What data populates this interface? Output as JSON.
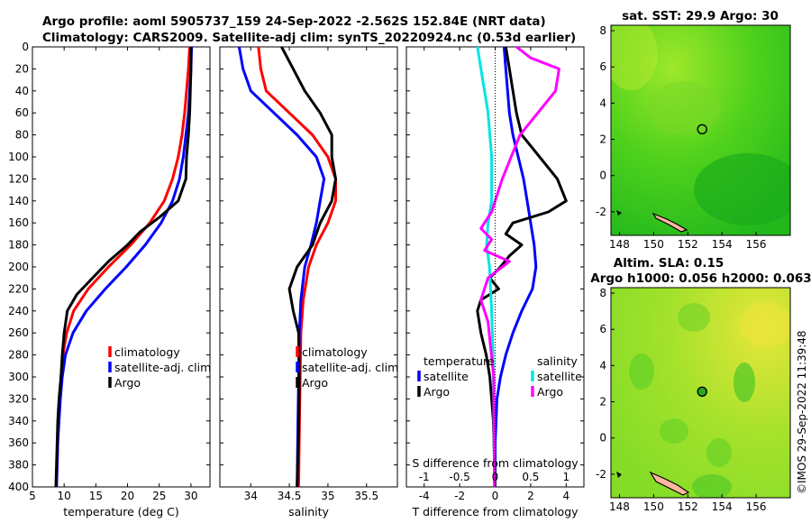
{
  "title_line1": "Argo profile: aoml 5905737_159 24-Sep-2022 -2.562S 152.84E (NRT data)",
  "title_line2": "Climatology: CARS2009. Satellite-adj clim: synTS_20220924.nc (0.53d earlier)",
  "credit": "©IMOS 29-Sep-2022 11:39:48",
  "colors": {
    "clim": "#ff0000",
    "sat": "#0000ff",
    "argo": "#000000",
    "sat_s": "#00e5e5",
    "argo_s": "#ff00ff"
  },
  "chart_data": [
    {
      "type": "line",
      "name": "temperature",
      "xlabel": "temperature (deg C)",
      "ylabel": "",
      "xlim": [
        5,
        33
      ],
      "ylim": [
        0,
        400
      ],
      "y_reversed": true,
      "xticks": [
        5,
        10,
        15,
        20,
        25,
        30
      ],
      "yticks": [
        0,
        20,
        40,
        60,
        80,
        100,
        120,
        140,
        160,
        180,
        200,
        220,
        240,
        260,
        280,
        300,
        320,
        340,
        360,
        380,
        400
      ],
      "legend": [
        "climatology",
        "satellite-adj. clim",
        "Argo"
      ],
      "series": [
        {
          "name": "climatology",
          "color": "#ff0000",
          "points": [
            [
              29.8,
              0
            ],
            [
              29.6,
              20
            ],
            [
              29.3,
              40
            ],
            [
              29.0,
              60
            ],
            [
              28.6,
              80
            ],
            [
              28.0,
              100
            ],
            [
              27.1,
              120
            ],
            [
              25.8,
              140
            ],
            [
              23.5,
              160
            ],
            [
              20.5,
              180
            ],
            [
              17.0,
              200
            ],
            [
              13.8,
              220
            ],
            [
              11.5,
              240
            ],
            [
              10.4,
              260
            ],
            [
              9.8,
              280
            ],
            [
              9.5,
              300
            ],
            [
              9.3,
              320
            ],
            [
              9.1,
              340
            ],
            [
              9.0,
              360
            ],
            [
              8.9,
              380
            ],
            [
              8.8,
              400
            ]
          ]
        },
        {
          "name": "satellite-adj. clim",
          "color": "#0000ff",
          "points": [
            [
              30.1,
              0
            ],
            [
              30.0,
              20
            ],
            [
              29.8,
              40
            ],
            [
              29.6,
              60
            ],
            [
              29.2,
              80
            ],
            [
              28.8,
              100
            ],
            [
              28.2,
              120
            ],
            [
              27.1,
              140
            ],
            [
              25.3,
              160
            ],
            [
              22.8,
              180
            ],
            [
              19.8,
              200
            ],
            [
              16.5,
              220
            ],
            [
              13.5,
              240
            ],
            [
              11.4,
              260
            ],
            [
              10.2,
              280
            ],
            [
              9.7,
              300
            ],
            [
              9.4,
              320
            ],
            [
              9.2,
              340
            ],
            [
              9.0,
              360
            ],
            [
              8.9,
              380
            ],
            [
              8.8,
              400
            ]
          ]
        },
        {
          "name": "Argo",
          "color": "#000000",
          "points": [
            [
              30.0,
              0
            ],
            [
              30.0,
              20
            ],
            [
              29.9,
              40
            ],
            [
              29.8,
              60
            ],
            [
              29.6,
              80
            ],
            [
              29.3,
              100
            ],
            [
              29.2,
              120
            ],
            [
              28.0,
              140
            ],
            [
              25.0,
              155
            ],
            [
              22.0,
              168
            ],
            [
              20.0,
              180
            ],
            [
              17.0,
              195
            ],
            [
              14.5,
              210
            ],
            [
              12.0,
              225
            ],
            [
              10.5,
              240
            ],
            [
              10.0,
              260
            ],
            [
              9.7,
              280
            ],
            [
              9.5,
              300
            ],
            [
              9.2,
              320
            ],
            [
              9.0,
              340
            ],
            [
              8.9,
              360
            ],
            [
              8.8,
              380
            ],
            [
              8.7,
              400
            ]
          ]
        }
      ]
    },
    {
      "type": "line",
      "name": "salinity",
      "xlabel": "salinity",
      "ylabel": "",
      "xlim": [
        33.6,
        35.9
      ],
      "ylim": [
        0,
        400
      ],
      "y_reversed": true,
      "xticks": [
        34,
        34.5,
        35,
        35.5
      ],
      "legend": [
        "climatology",
        "satellite-adj. clim",
        "Argo"
      ],
      "series": [
        {
          "name": "climatology",
          "color": "#ff0000",
          "points": [
            [
              34.1,
              0
            ],
            [
              34.13,
              20
            ],
            [
              34.2,
              40
            ],
            [
              34.5,
              60
            ],
            [
              34.8,
              80
            ],
            [
              35.0,
              100
            ],
            [
              35.1,
              120
            ],
            [
              35.1,
              140
            ],
            [
              35.0,
              160
            ],
            [
              34.85,
              180
            ],
            [
              34.75,
              200
            ],
            [
              34.68,
              230
            ],
            [
              34.65,
              260
            ],
            [
              34.64,
              300
            ],
            [
              34.63,
              350
            ],
            [
              34.62,
              400
            ]
          ]
        },
        {
          "name": "satellite-adj. clim",
          "color": "#0000ff",
          "points": [
            [
              33.85,
              0
            ],
            [
              33.9,
              20
            ],
            [
              34.0,
              40
            ],
            [
              34.3,
              60
            ],
            [
              34.6,
              80
            ],
            [
              34.85,
              100
            ],
            [
              34.95,
              120
            ],
            [
              34.9,
              140
            ],
            [
              34.85,
              160
            ],
            [
              34.78,
              180
            ],
            [
              34.7,
              200
            ],
            [
              34.65,
              230
            ],
            [
              34.63,
              260
            ],
            [
              34.62,
              300
            ],
            [
              34.61,
              350
            ],
            [
              34.6,
              400
            ]
          ]
        },
        {
          "name": "Argo",
          "color": "#000000",
          "points": [
            [
              34.4,
              0
            ],
            [
              34.55,
              20
            ],
            [
              34.7,
              40
            ],
            [
              34.9,
              60
            ],
            [
              35.05,
              80
            ],
            [
              35.05,
              100
            ],
            [
              35.1,
              120
            ],
            [
              35.05,
              140
            ],
            [
              34.9,
              160
            ],
            [
              34.8,
              180
            ],
            [
              34.6,
              200
            ],
            [
              34.5,
              220
            ],
            [
              34.55,
              240
            ],
            [
              34.62,
              260
            ],
            [
              34.63,
              300
            ],
            [
              34.62,
              350
            ],
            [
              34.6,
              400
            ]
          ]
        }
      ]
    },
    {
      "type": "line",
      "name": "difference",
      "xlabel": "T difference from climatology",
      "x2label": "S difference from climatology",
      "xlim": [
        -5,
        5
      ],
      "x2lim": [
        -1.25,
        1.25
      ],
      "ylim": [
        0,
        400
      ],
      "y_reversed": true,
      "xticks": [
        -4,
        -2,
        0,
        2,
        4
      ],
      "x2ticks": [
        -1,
        -0.5,
        0,
        0.5,
        1
      ],
      "x2ticklabels": [
        "-1",
        "-0.5",
        "0",
        "0.5",
        "1"
      ],
      "legend_titles": [
        "temperature",
        "salinity"
      ],
      "legend": [
        "satellite",
        "Argo",
        "satellite",
        "Argo"
      ],
      "series": [
        {
          "name": "T satellite",
          "color": "#0000ff",
          "points": [
            [
              0.5,
              0
            ],
            [
              0.6,
              20
            ],
            [
              0.7,
              40
            ],
            [
              0.8,
              60
            ],
            [
              1.0,
              80
            ],
            [
              1.3,
              100
            ],
            [
              1.6,
              120
            ],
            [
              1.8,
              140
            ],
            [
              2.0,
              160
            ],
            [
              2.2,
              180
            ],
            [
              2.3,
              200
            ],
            [
              2.1,
              220
            ],
            [
              1.5,
              240
            ],
            [
              1.0,
              260
            ],
            [
              0.6,
              280
            ],
            [
              0.3,
              300
            ],
            [
              0.1,
              320
            ],
            [
              0.0,
              360
            ],
            [
              0.0,
              400
            ]
          ]
        },
        {
          "name": "T Argo",
          "color": "#000000",
          "points": [
            [
              0.6,
              0
            ],
            [
              0.8,
              20
            ],
            [
              1.0,
              40
            ],
            [
              1.2,
              60
            ],
            [
              1.5,
              80
            ],
            [
              2.5,
              100
            ],
            [
              3.5,
              120
            ],
            [
              4.0,
              140
            ],
            [
              3.0,
              150
            ],
            [
              1.0,
              160
            ],
            [
              0.6,
              170
            ],
            [
              1.5,
              180
            ],
            [
              0.8,
              190
            ],
            [
              0.3,
              200
            ],
            [
              -0.3,
              210
            ],
            [
              0.2,
              220
            ],
            [
              -0.8,
              230
            ],
            [
              -1.0,
              240
            ],
            [
              -0.8,
              260
            ],
            [
              -0.5,
              280
            ],
            [
              -0.3,
              300
            ],
            [
              -0.1,
              340
            ],
            [
              0.0,
              400
            ]
          ]
        },
        {
          "name": "S satellite",
          "color": "#00e5e5",
          "points": [
            [
              -0.25,
              0
            ],
            [
              -0.2,
              20
            ],
            [
              -0.15,
              40
            ],
            [
              -0.1,
              60
            ],
            [
              -0.05,
              100
            ],
            [
              -0.05,
              140
            ],
            [
              -0.1,
              160
            ],
            [
              -0.12,
              180
            ],
            [
              -0.08,
              200
            ],
            [
              -0.05,
              240
            ],
            [
              -0.03,
              280
            ],
            [
              -0.02,
              320
            ],
            [
              -0.01,
              400
            ]
          ]
        },
        {
          "name": "S Argo",
          "color": "#ff00ff",
          "points": [
            [
              0.3,
              0
            ],
            [
              0.5,
              10
            ],
            [
              0.9,
              20
            ],
            [
              0.85,
              40
            ],
            [
              0.6,
              60
            ],
            [
              0.35,
              80
            ],
            [
              0.1,
              120
            ],
            [
              -0.05,
              150
            ],
            [
              -0.2,
              165
            ],
            [
              -0.05,
              175
            ],
            [
              -0.15,
              185
            ],
            [
              0.2,
              195
            ],
            [
              -0.1,
              210
            ],
            [
              -0.2,
              230
            ],
            [
              -0.1,
              250
            ],
            [
              -0.02,
              300
            ],
            [
              -0.01,
              400
            ]
          ]
        }
      ]
    },
    {
      "type": "heatmap",
      "name": "sat-sst-map",
      "title": "sat. SST: 29.9 Argo: 30",
      "xlim": [
        147.5,
        158.0
      ],
      "ylim": [
        -3.3,
        8.3
      ],
      "xticks": [
        148,
        150,
        152,
        154,
        156
      ],
      "yticks": [
        -2,
        0,
        2,
        4,
        6,
        8
      ],
      "marker": [
        152.84,
        2.56
      ]
    },
    {
      "type": "heatmap",
      "name": "altim-sla-map",
      "title": "Altim. SLA: 0.15",
      "subtitle": "Argo h1000: 0.056 h2000: 0.063",
      "xlim": [
        147.5,
        158.0
      ],
      "ylim": [
        -3.3,
        8.3
      ],
      "xticks": [
        148,
        150,
        152,
        154,
        156
      ],
      "yticks": [
        -2,
        0,
        2,
        4,
        6,
        8
      ],
      "marker": [
        152.84,
        2.56
      ]
    }
  ]
}
